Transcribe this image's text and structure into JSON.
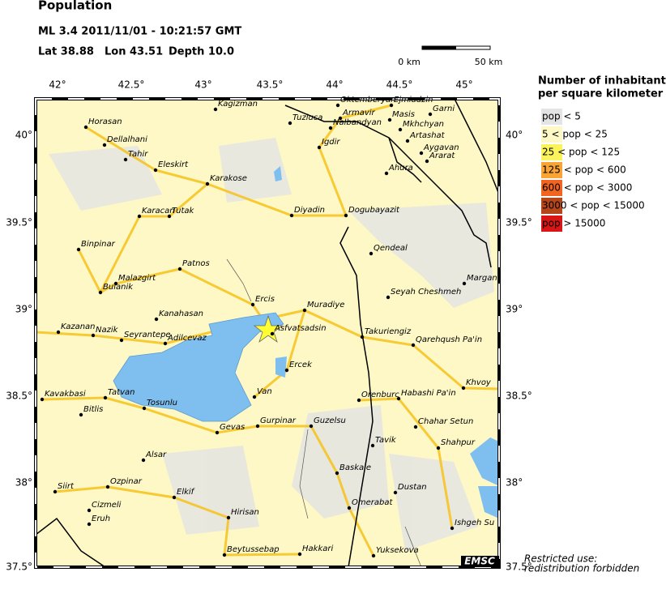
{
  "header": {
    "title": "Population",
    "event": "ML 3.4  2011/11/01 - 10:21:57 GMT",
    "lat": "Lat 38.88",
    "lon": "Lon 43.51",
    "depth": "Depth  10.0"
  },
  "scale": {
    "start": "0 km",
    "end": "50 km"
  },
  "lon_ticks": [
    "42°",
    "42.5°",
    "43°",
    "43.5°",
    "44°",
    "44.5°",
    "45°"
  ],
  "lat_ticks": [
    "40°",
    "39.5°",
    "39°",
    "38.5°",
    "38°",
    "37.5°"
  ],
  "legend": {
    "title_line1": "Number of inhabitants",
    "title_line2": "per square kilometer",
    "entries": [
      {
        "label": "pop < 5",
        "color": "#e4e4e4"
      },
      {
        "label": "5 < pop < 25",
        "color": "#fdf8c6"
      },
      {
        "label": "25 < pop < 125",
        "color": "#fbf35c"
      },
      {
        "label": "125 < pop < 600",
        "color": "#f9a435"
      },
      {
        "label": "600 < pop < 3000",
        "color": "#f26520"
      },
      {
        "label": "3000 < pop < 15000",
        "color": "#b4461a"
      },
      {
        "label": "pop > 15000",
        "color": "#d91515"
      }
    ]
  },
  "towns": [
    "Horasan",
    "Dellalhani",
    "Tahir",
    "Kagizman",
    "Tuzluca",
    "Oktemberyan",
    "Ejmiadzin",
    "Armavir",
    "Nalbandyan",
    "Masis",
    "Garni",
    "Mkhchyan",
    "Artashat",
    "Igdir",
    "Aygavan",
    "Ararat",
    "Eleskirt",
    "Karakose",
    "Ahura",
    "Karacan",
    "Tutak",
    "Diyadin",
    "Dogubayazit",
    "Binpinar",
    "Qendeal",
    "Patnos",
    "Malazgirt",
    "Bulanik",
    "Margan",
    "Seyah Cheshmeh",
    "Ercis",
    "Muradiye",
    "Kanahasan",
    "Kazanan",
    "Nazik",
    "Seyrantepe",
    "Adilcevaz",
    "Asfvatsadsin",
    "Takuriengiz",
    "Qarehqush Pa'in",
    "Ercek",
    "Khvoy",
    "Kavakbasi",
    "Tatvan",
    "Van",
    "Orenburc",
    "Habashi Pa'in",
    "Tosunlu",
    "Bitlis",
    "Gevas",
    "Gurpinar",
    "Guzelsu",
    "Chahar Setun",
    "Tavik",
    "Shahpur",
    "Alsar",
    "Baskale",
    "Ozpinar",
    "Siirt",
    "Elkif",
    "Dustan",
    "Cizmeli",
    "Omerabat",
    "Hirisan",
    "Eruh",
    "Ishgeh Su",
    "Beytussebap",
    "Hakkari",
    "Yuksekova"
  ],
  "footer": {
    "badge": "EMSC",
    "note_line1": "Restricted use:",
    "note_line2": "redistribution forbidden"
  }
}
